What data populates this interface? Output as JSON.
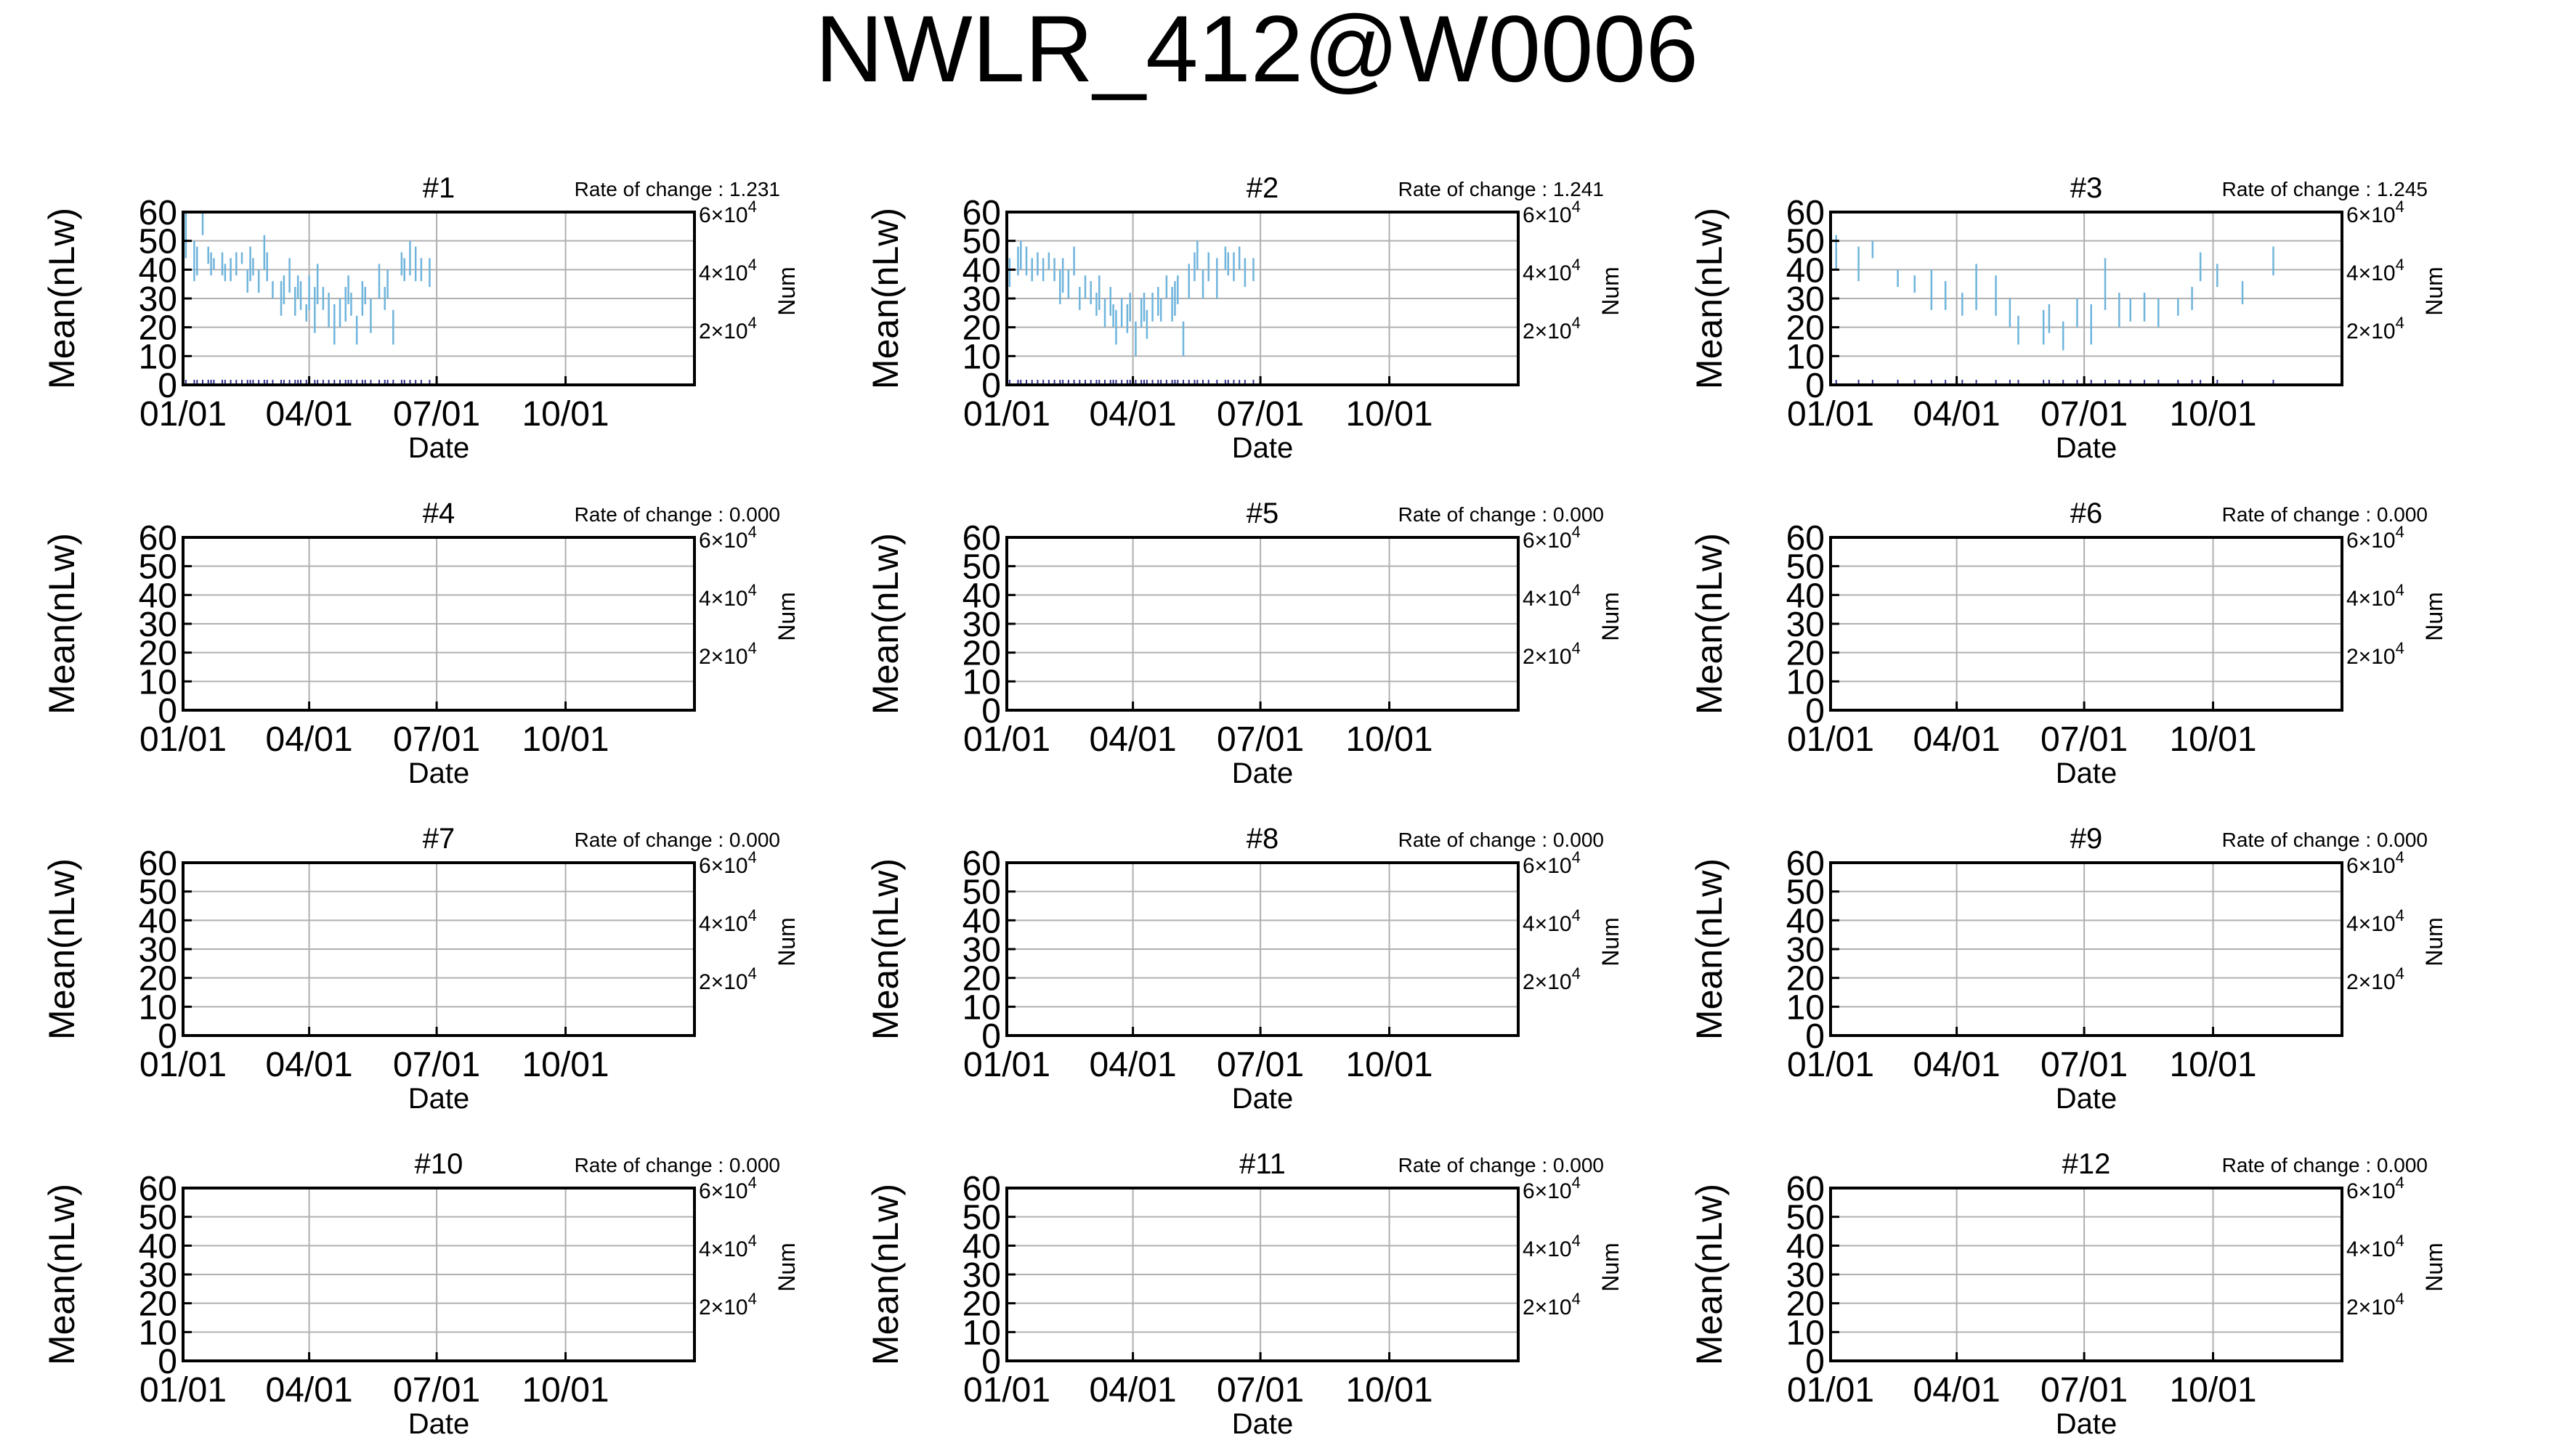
{
  "page": {
    "title": "NWLR_412@W0006"
  },
  "colors": {
    "errorbar": "#6fb4dc",
    "grid": "#b0b0b0",
    "axis": "#000000"
  },
  "chart_data": [
    {
      "type": "errorbar",
      "title": "#1",
      "rate": "Rate of change : 1.231",
      "xlabel": "Date",
      "ylabel": "Mean(nLw)",
      "y2label": "Num",
      "xticks": [
        "01/01",
        "04/01",
        "07/01",
        "10/01"
      ],
      "yticks": [
        "0",
        "10",
        "20",
        "30",
        "40",
        "50",
        "60"
      ],
      "y2ticks": [
        {
          "base": "2×10",
          "exp": "4"
        },
        {
          "base": "4×10",
          "exp": "4"
        },
        {
          "base": "6×10",
          "exp": "4"
        }
      ],
      "xlim": [
        0,
        365
      ],
      "ylim": [
        0,
        60
      ],
      "grid": true,
      "bars": [
        [
          2,
          44,
          60
        ],
        [
          8,
          36,
          50
        ],
        [
          10,
          38,
          48
        ],
        [
          14,
          52,
          60
        ],
        [
          18,
          42,
          48
        ],
        [
          20,
          38,
          46
        ],
        [
          22,
          40,
          44
        ],
        [
          28,
          38,
          46
        ],
        [
          30,
          36,
          42
        ],
        [
          34,
          36,
          44
        ],
        [
          38,
          38,
          46
        ],
        [
          42,
          42,
          46
        ],
        [
          46,
          32,
          40
        ],
        [
          48,
          36,
          48
        ],
        [
          50,
          38,
          44
        ],
        [
          54,
          32,
          40
        ],
        [
          58,
          40,
          52
        ],
        [
          60,
          36,
          46
        ],
        [
          64,
          30,
          36
        ],
        [
          70,
          24,
          36
        ],
        [
          72,
          28,
          38
        ],
        [
          76,
          32,
          44
        ],
        [
          80,
          24,
          34
        ],
        [
          82,
          30,
          38
        ],
        [
          84,
          26,
          36
        ],
        [
          88,
          22,
          28
        ],
        [
          90,
          26,
          38
        ],
        [
          94,
          18,
          34
        ],
        [
          96,
          28,
          42
        ],
        [
          100,
          26,
          34
        ],
        [
          104,
          20,
          32
        ],
        [
          108,
          14,
          28
        ],
        [
          112,
          20,
          30
        ],
        [
          116,
          22,
          34
        ],
        [
          118,
          28,
          38
        ],
        [
          120,
          24,
          32
        ],
        [
          124,
          14,
          24
        ],
        [
          128,
          24,
          36
        ],
        [
          130,
          28,
          34
        ],
        [
          134,
          18,
          30
        ],
        [
          140,
          30,
          42
        ],
        [
          144,
          26,
          34
        ],
        [
          146,
          30,
          40
        ],
        [
          150,
          14,
          26
        ],
        [
          156,
          38,
          46
        ],
        [
          158,
          36,
          44
        ],
        [
          162,
          38,
          50
        ],
        [
          166,
          36,
          48
        ],
        [
          170,
          36,
          44
        ],
        [
          176,
          34,
          44
        ]
      ]
    },
    {
      "type": "errorbar",
      "title": "#2",
      "rate": "Rate of change : 1.241",
      "xlabel": "Date",
      "ylabel": "Mean(nLw)",
      "y2label": "Num",
      "xticks": [
        "01/01",
        "04/01",
        "07/01",
        "10/01"
      ],
      "yticks": [
        "0",
        "10",
        "20",
        "30",
        "40",
        "50",
        "60"
      ],
      "y2ticks": [
        {
          "base": "2×10",
          "exp": "4"
        },
        {
          "base": "4×10",
          "exp": "4"
        },
        {
          "base": "6×10",
          "exp": "4"
        }
      ],
      "xlim": [
        0,
        365
      ],
      "ylim": [
        0,
        60
      ],
      "grid": true,
      "bars": [
        [
          2,
          34,
          44
        ],
        [
          8,
          38,
          48
        ],
        [
          10,
          40,
          50
        ],
        [
          14,
          38,
          48
        ],
        [
          18,
          36,
          44
        ],
        [
          22,
          38,
          46
        ],
        [
          26,
          36,
          44
        ],
        [
          30,
          40,
          46
        ],
        [
          34,
          36,
          44
        ],
        [
          38,
          28,
          40
        ],
        [
          40,
          32,
          44
        ],
        [
          44,
          30,
          40
        ],
        [
          48,
          38,
          48
        ],
        [
          52,
          26,
          34
        ],
        [
          56,
          30,
          38
        ],
        [
          60,
          28,
          36
        ],
        [
          64,
          24,
          32
        ],
        [
          66,
          26,
          38
        ],
        [
          70,
          20,
          30
        ],
        [
          74,
          24,
          34
        ],
        [
          76,
          20,
          28
        ],
        [
          78,
          14,
          26
        ],
        [
          82,
          20,
          30
        ],
        [
          86,
          18,
          28
        ],
        [
          88,
          22,
          32
        ],
        [
          92,
          10,
          22
        ],
        [
          96,
          20,
          30
        ],
        [
          98,
          22,
          32
        ],
        [
          100,
          16,
          26
        ],
        [
          104,
          22,
          32
        ],
        [
          108,
          24,
          34
        ],
        [
          110,
          22,
          30
        ],
        [
          114,
          30,
          38
        ],
        [
          118,
          22,
          34
        ],
        [
          120,
          24,
          36
        ],
        [
          122,
          28,
          38
        ],
        [
          126,
          10,
          22
        ],
        [
          130,
          30,
          42
        ],
        [
          134,
          36,
          46
        ],
        [
          136,
          40,
          50
        ],
        [
          140,
          30,
          40
        ],
        [
          144,
          36,
          46
        ],
        [
          150,
          30,
          44
        ],
        [
          156,
          40,
          48
        ],
        [
          158,
          38,
          46
        ],
        [
          162,
          36,
          46
        ],
        [
          166,
          40,
          48
        ],
        [
          170,
          34,
          44
        ],
        [
          176,
          36,
          44
        ]
      ]
    },
    {
      "type": "errorbar",
      "title": "#3",
      "rate": "Rate of change : 1.245",
      "xlabel": "Date",
      "ylabel": "Mean(nLw)",
      "y2label": "Num",
      "xticks": [
        "01/01",
        "04/01",
        "07/01",
        "10/01"
      ],
      "yticks": [
        "0",
        "10",
        "20",
        "30",
        "40",
        "50",
        "60"
      ],
      "y2ticks": [
        {
          "base": "2×10",
          "exp": "4"
        },
        {
          "base": "4×10",
          "exp": "4"
        },
        {
          "base": "6×10",
          "exp": "4"
        }
      ],
      "xlim": [
        0,
        365
      ],
      "ylim": [
        0,
        60
      ],
      "grid": true,
      "bars": [
        [
          4,
          40,
          52
        ],
        [
          20,
          36,
          48
        ],
        [
          30,
          44,
          50
        ],
        [
          48,
          34,
          40
        ],
        [
          60,
          32,
          38
        ],
        [
          72,
          26,
          40
        ],
        [
          82,
          26,
          36
        ],
        [
          94,
          24,
          32
        ],
        [
          104,
          26,
          42
        ],
        [
          118,
          24,
          38
        ],
        [
          128,
          20,
          30
        ],
        [
          134,
          14,
          24
        ],
        [
          152,
          14,
          26
        ],
        [
          156,
          18,
          28
        ],
        [
          166,
          12,
          22
        ],
        [
          176,
          20,
          30
        ],
        [
          186,
          14,
          28
        ],
        [
          196,
          26,
          44
        ],
        [
          206,
          20,
          32
        ],
        [
          214,
          22,
          30
        ],
        [
          224,
          22,
          32
        ],
        [
          234,
          20,
          30
        ],
        [
          248,
          24,
          30
        ],
        [
          258,
          26,
          34
        ],
        [
          264,
          36,
          46
        ],
        [
          276,
          34,
          42
        ],
        [
          294,
          28,
          36
        ],
        [
          316,
          38,
          48
        ]
      ]
    },
    {
      "type": "errorbar",
      "title": "#4",
      "rate": "Rate of change : 0.000",
      "xlabel": "Date",
      "ylabel": "Mean(nLw)",
      "y2label": "Num",
      "xticks": [
        "01/01",
        "04/01",
        "07/01",
        "10/01"
      ],
      "yticks": [
        "0",
        "10",
        "20",
        "30",
        "40",
        "50",
        "60"
      ],
      "y2ticks": [
        {
          "base": "2×10",
          "exp": "4"
        },
        {
          "base": "4×10",
          "exp": "4"
        },
        {
          "base": "6×10",
          "exp": "4"
        }
      ],
      "xlim": [
        0,
        365
      ],
      "ylim": [
        0,
        60
      ],
      "grid": true,
      "bars": []
    },
    {
      "type": "errorbar",
      "title": "#5",
      "rate": "Rate of change : 0.000",
      "xlabel": "Date",
      "ylabel": "Mean(nLw)",
      "y2label": "Num",
      "xticks": [
        "01/01",
        "04/01",
        "07/01",
        "10/01"
      ],
      "yticks": [
        "0",
        "10",
        "20",
        "30",
        "40",
        "50",
        "60"
      ],
      "y2ticks": [
        {
          "base": "2×10",
          "exp": "4"
        },
        {
          "base": "4×10",
          "exp": "4"
        },
        {
          "base": "6×10",
          "exp": "4"
        }
      ],
      "xlim": [
        0,
        365
      ],
      "ylim": [
        0,
        60
      ],
      "grid": true,
      "bars": []
    },
    {
      "type": "errorbar",
      "title": "#6",
      "rate": "Rate of change : 0.000",
      "xlabel": "Date",
      "ylabel": "Mean(nLw)",
      "y2label": "Num",
      "xticks": [
        "01/01",
        "04/01",
        "07/01",
        "10/01"
      ],
      "yticks": [
        "0",
        "10",
        "20",
        "30",
        "40",
        "50",
        "60"
      ],
      "y2ticks": [
        {
          "base": "2×10",
          "exp": "4"
        },
        {
          "base": "4×10",
          "exp": "4"
        },
        {
          "base": "6×10",
          "exp": "4"
        }
      ],
      "xlim": [
        0,
        365
      ],
      "ylim": [
        0,
        60
      ],
      "grid": true,
      "bars": []
    },
    {
      "type": "errorbar",
      "title": "#7",
      "rate": "Rate of change : 0.000",
      "xlabel": "Date",
      "ylabel": "Mean(nLw)",
      "y2label": "Num",
      "xticks": [
        "01/01",
        "04/01",
        "07/01",
        "10/01"
      ],
      "yticks": [
        "0",
        "10",
        "20",
        "30",
        "40",
        "50",
        "60"
      ],
      "y2ticks": [
        {
          "base": "2×10",
          "exp": "4"
        },
        {
          "base": "4×10",
          "exp": "4"
        },
        {
          "base": "6×10",
          "exp": "4"
        }
      ],
      "xlim": [
        0,
        365
      ],
      "ylim": [
        0,
        60
      ],
      "grid": true,
      "bars": []
    },
    {
      "type": "errorbar",
      "title": "#8",
      "rate": "Rate of change : 0.000",
      "xlabel": "Date",
      "ylabel": "Mean(nLw)",
      "y2label": "Num",
      "xticks": [
        "01/01",
        "04/01",
        "07/01",
        "10/01"
      ],
      "yticks": [
        "0",
        "10",
        "20",
        "30",
        "40",
        "50",
        "60"
      ],
      "y2ticks": [
        {
          "base": "2×10",
          "exp": "4"
        },
        {
          "base": "4×10",
          "exp": "4"
        },
        {
          "base": "6×10",
          "exp": "4"
        }
      ],
      "xlim": [
        0,
        365
      ],
      "ylim": [
        0,
        60
      ],
      "grid": true,
      "bars": []
    },
    {
      "type": "errorbar",
      "title": "#9",
      "rate": "Rate of change : 0.000",
      "xlabel": "Date",
      "ylabel": "Mean(nLw)",
      "y2label": "Num",
      "xticks": [
        "01/01",
        "04/01",
        "07/01",
        "10/01"
      ],
      "yticks": [
        "0",
        "10",
        "20",
        "30",
        "40",
        "50",
        "60"
      ],
      "y2ticks": [
        {
          "base": "2×10",
          "exp": "4"
        },
        {
          "base": "4×10",
          "exp": "4"
        },
        {
          "base": "6×10",
          "exp": "4"
        }
      ],
      "xlim": [
        0,
        365
      ],
      "ylim": [
        0,
        60
      ],
      "grid": true,
      "bars": []
    },
    {
      "type": "errorbar",
      "title": "#10",
      "rate": "Rate of change : 0.000",
      "xlabel": "Date",
      "ylabel": "Mean(nLw)",
      "y2label": "Num",
      "xticks": [
        "01/01",
        "04/01",
        "07/01",
        "10/01"
      ],
      "yticks": [
        "0",
        "10",
        "20",
        "30",
        "40",
        "50",
        "60"
      ],
      "y2ticks": [
        {
          "base": "2×10",
          "exp": "4"
        },
        {
          "base": "4×10",
          "exp": "4"
        },
        {
          "base": "6×10",
          "exp": "4"
        }
      ],
      "xlim": [
        0,
        365
      ],
      "ylim": [
        0,
        60
      ],
      "grid": true,
      "bars": []
    },
    {
      "type": "errorbar",
      "title": "#11",
      "rate": "Rate of change : 0.000",
      "xlabel": "Date",
      "ylabel": "Mean(nLw)",
      "y2label": "Num",
      "xticks": [
        "01/01",
        "04/01",
        "07/01",
        "10/01"
      ],
      "yticks": [
        "0",
        "10",
        "20",
        "30",
        "40",
        "50",
        "60"
      ],
      "y2ticks": [
        {
          "base": "2×10",
          "exp": "4"
        },
        {
          "base": "4×10",
          "exp": "4"
        },
        {
          "base": "6×10",
          "exp": "4"
        }
      ],
      "xlim": [
        0,
        365
      ],
      "ylim": [
        0,
        60
      ],
      "grid": true,
      "bars": []
    },
    {
      "type": "errorbar",
      "title": "#12",
      "rate": "Rate of change : 0.000",
      "xlabel": "Date",
      "ylabel": "Mean(nLw)",
      "y2label": "Num",
      "xticks": [
        "01/01",
        "04/01",
        "07/01",
        "10/01"
      ],
      "yticks": [
        "0",
        "10",
        "20",
        "30",
        "40",
        "50",
        "60"
      ],
      "y2ticks": [
        {
          "base": "2×10",
          "exp": "4"
        },
        {
          "base": "4×10",
          "exp": "4"
        },
        {
          "base": "6×10",
          "exp": "4"
        }
      ],
      "xlim": [
        0,
        365
      ],
      "ylim": [
        0,
        60
      ],
      "grid": true,
      "bars": []
    }
  ]
}
